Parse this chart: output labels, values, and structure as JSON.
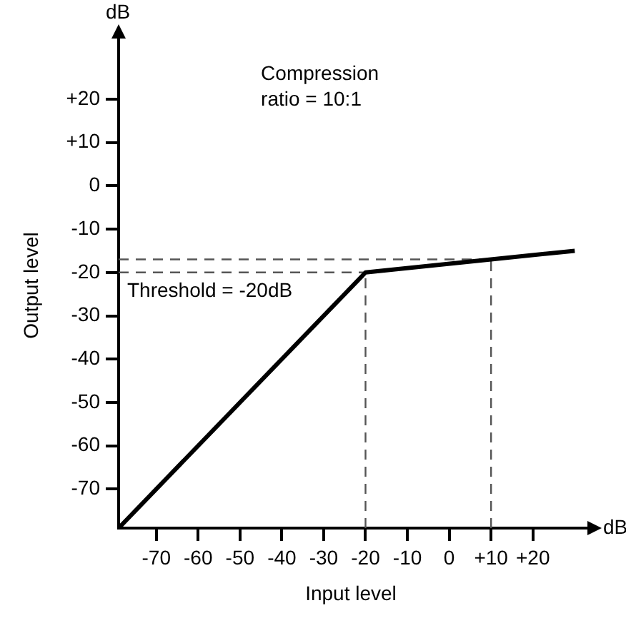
{
  "chart_data": {
    "type": "line",
    "xlabel": "Input level",
    "ylabel": "Output level",
    "xlim": [
      -79,
      32
    ],
    "ylim": [
      -79,
      33
    ],
    "xticks": [
      -70,
      -60,
      -50,
      -40,
      -30,
      -20,
      -10,
      0,
      {
        "value": 10,
        "label": "+10"
      },
      {
        "value": 20,
        "label": "+20"
      }
    ],
    "yticks": [
      -70,
      -60,
      -50,
      -40,
      -30,
      -20,
      -10,
      0,
      {
        "value": 10,
        "label": "+10"
      },
      {
        "value": 20,
        "label": "+20"
      }
    ],
    "series": [
      {
        "color": "#000000",
        "x": [
          -79,
          -20,
          10,
          30
        ],
        "values": [
          -79,
          -20,
          -17,
          -15
        ]
      },
      {
        "color": "#555555",
        "line_style": "dashed",
        "x": [
          -79,
          -20
        ],
        "values": [
          -20,
          -20
        ]
      },
      {
        "color": "#555555",
        "line_style": "dashed",
        "x": [
          -20,
          -20
        ],
        "values": [
          -79,
          -20
        ]
      },
      {
        "color": "#555555",
        "line_style": "dashed",
        "x": [
          -79,
          10
        ],
        "values": [
          -17,
          -17
        ]
      },
      {
        "color": "#555555",
        "line_style": "dashed",
        "x": [
          10,
          10
        ],
        "values": [
          -79,
          -17
        ]
      }
    ],
    "annotations": [
      "dB",
      "dB",
      "Compression\nratio = 10:1",
      {
        "text": "Threshold = -20dB",
        "x": -79,
        "y": -20
      }
    ],
    "legend": false,
    "marker": "none"
  }
}
